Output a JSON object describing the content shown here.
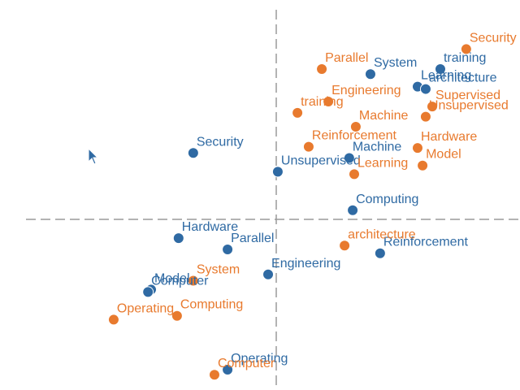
{
  "chart_data": {
    "type": "scatter",
    "title": "",
    "xlabel": "",
    "ylabel": "",
    "xlim": [
      -10,
      10
    ],
    "ylim": [
      -6.5,
      8
    ],
    "grid": false,
    "axes_style": "dashed-crosshair-at-origin",
    "series": [
      {
        "color": "#2f6aa3",
        "points": [
          {
            "label": "System",
            "x": 3.02,
            "y": 6.04
          },
          {
            "label": "training",
            "x": 5.26,
            "y": 6.25
          },
          {
            "label": "Learning",
            "x": 4.53,
            "y": 5.52
          },
          {
            "label": "architecture",
            "x": 4.79,
            "y": 5.42
          },
          {
            "label": "Security",
            "x": -2.66,
            "y": 2.76
          },
          {
            "label": "Machine",
            "x": 2.34,
            "y": 2.55
          },
          {
            "label": "Unsupervised",
            "x": 0.05,
            "y": 1.98
          },
          {
            "label": "Computing",
            "x": 2.45,
            "y": 0.38
          },
          {
            "label": "Hardware",
            "x": -3.13,
            "y": -0.78
          },
          {
            "label": "Parallel",
            "x": -1.56,
            "y": -1.25
          },
          {
            "label": "Reinforcement",
            "x": 3.33,
            "y": -1.41
          },
          {
            "label": "Engineering",
            "x": -0.26,
            "y": -2.29
          },
          {
            "label": "Model",
            "x": -4.01,
            "y": -2.92
          },
          {
            "label": "Computer",
            "x": -4.11,
            "y": -3.02
          },
          {
            "label": "Operating",
            "x": -1.56,
            "y": -6.25
          }
        ]
      },
      {
        "color": "#e87a2e",
        "points": [
          {
            "label": "Security",
            "x": 6.09,
            "y": 7.08
          },
          {
            "label": "Parallel",
            "x": 1.46,
            "y": 6.25
          },
          {
            "label": "Engineering",
            "x": 1.67,
            "y": 4.9
          },
          {
            "label": "Supervised",
            "x": 5.0,
            "y": 4.69
          },
          {
            "label": "training",
            "x": 0.68,
            "y": 4.43
          },
          {
            "label": "Unsupervised",
            "x": 4.79,
            "y": 4.27
          },
          {
            "label": "Machine",
            "x": 2.55,
            "y": 3.85
          },
          {
            "label": "Reinforcement",
            "x": 1.04,
            "y": 3.02
          },
          {
            "label": "Hardware",
            "x": 4.53,
            "y": 2.97
          },
          {
            "label": "Model",
            "x": 4.69,
            "y": 2.24
          },
          {
            "label": "Learning",
            "x": 2.5,
            "y": 1.88
          },
          {
            "label": "architecture",
            "x": 2.19,
            "y": -1.09
          },
          {
            "label": "System",
            "x": -2.66,
            "y": -2.55
          },
          {
            "label": "Computing",
            "x": -3.18,
            "y": -4.01
          },
          {
            "label": "Operating",
            "x": -5.21,
            "y": -4.17
          },
          {
            "label": "Computer",
            "x": -1.98,
            "y": -6.46
          }
        ]
      }
    ]
  },
  "icons": {
    "cursor": "mouse-pointer-icon"
  }
}
